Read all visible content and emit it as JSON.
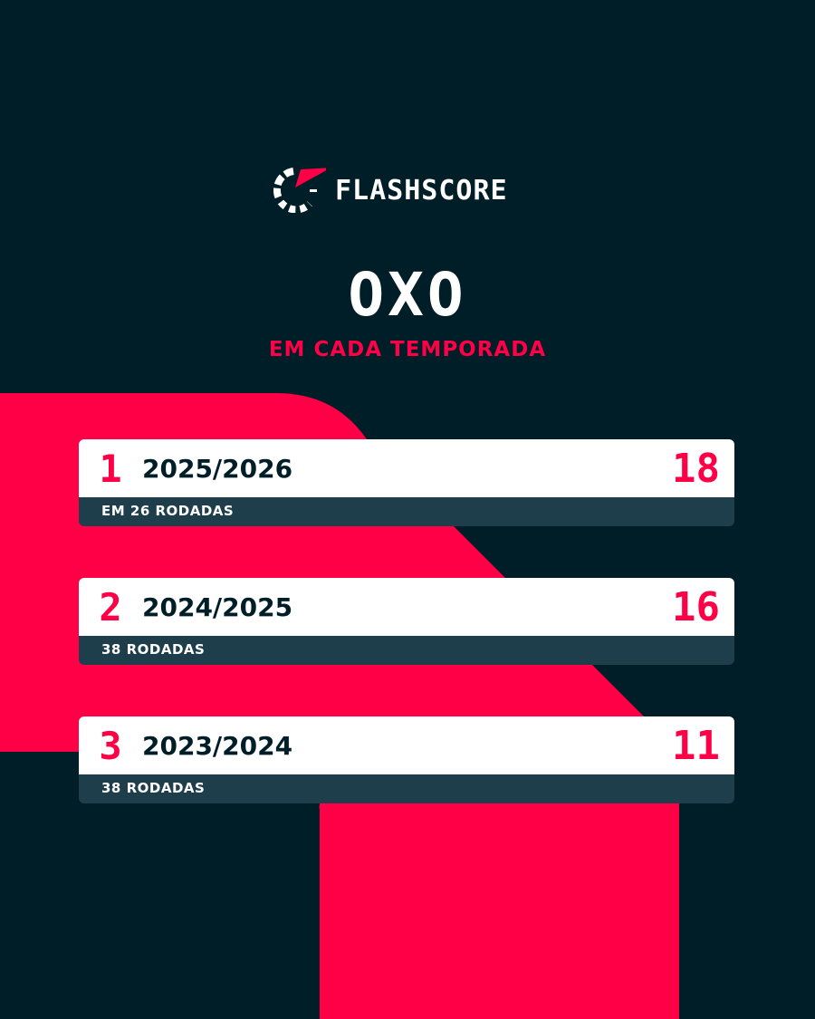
{
  "brand": {
    "name": "FLASHSCORE",
    "colors": {
      "background": "#001e28",
      "accent": "#ff0046",
      "card": "#ffffff",
      "card_footer": "#1f3e4c"
    }
  },
  "header": {
    "title": "OXO",
    "subtitle": "EM CADA TEMPORADA"
  },
  "seasons": [
    {
      "rank": "1",
      "season": "2025/2026",
      "value": "18",
      "rounds": "EM 26 RODADAS"
    },
    {
      "rank": "2",
      "season": "2024/2025",
      "value": "16",
      "rounds": "38 RODADAS"
    },
    {
      "rank": "3",
      "season": "2023/2024",
      "value": "11",
      "rounds": "38 RODADAS"
    }
  ]
}
